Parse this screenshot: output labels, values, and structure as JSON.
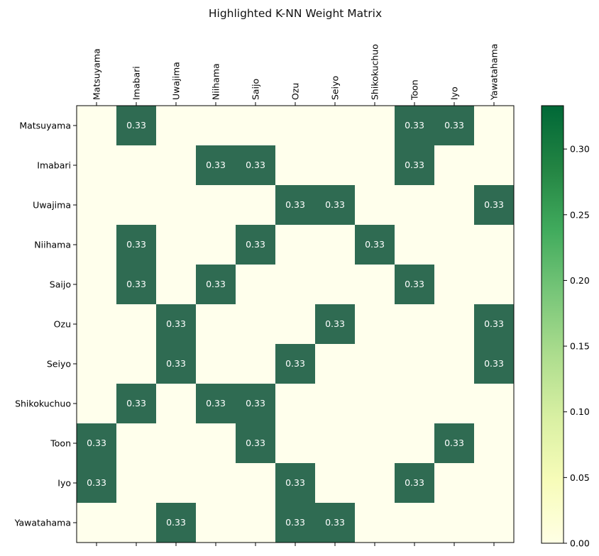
{
  "chart_data": {
    "type": "heatmap",
    "title": "Highlighted K-NN Weight Matrix",
    "x_categories": [
      "Matsuyama",
      "Imabari",
      "Uwajima",
      "Niihama",
      "Saijo",
      "Ozu",
      "Seiyo",
      "Shikokuchuo",
      "Toon",
      "Iyo",
      "Yawatahama"
    ],
    "y_categories": [
      "Matsuyama",
      "Imabari",
      "Uwajima",
      "Niihama",
      "Saijo",
      "Ozu",
      "Seiyo",
      "Shikokuchuo",
      "Toon",
      "Iyo",
      "Yawatahama"
    ],
    "values": [
      [
        0,
        0.33,
        0,
        0,
        0,
        0,
        0,
        0,
        0.33,
        0.33,
        0
      ],
      [
        0,
        0,
        0,
        0.33,
        0.33,
        0,
        0,
        0,
        0.33,
        0,
        0
      ],
      [
        0,
        0,
        0,
        0,
        0,
        0.33,
        0.33,
        0,
        0,
        0,
        0.33
      ],
      [
        0,
        0.33,
        0,
        0,
        0.33,
        0,
        0,
        0.33,
        0,
        0,
        0
      ],
      [
        0,
        0.33,
        0,
        0.33,
        0,
        0,
        0,
        0,
        0.33,
        0,
        0
      ],
      [
        0,
        0,
        0.33,
        0,
        0,
        0,
        0.33,
        0,
        0,
        0,
        0.33
      ],
      [
        0,
        0,
        0.33,
        0,
        0,
        0.33,
        0,
        0,
        0,
        0,
        0.33
      ],
      [
        0,
        0.33,
        0,
        0.33,
        0.33,
        0,
        0,
        0,
        0,
        0,
        0
      ],
      [
        0.33,
        0,
        0,
        0,
        0.33,
        0,
        0,
        0,
        0,
        0.33,
        0
      ],
      [
        0.33,
        0,
        0,
        0,
        0,
        0.33,
        0,
        0,
        0.33,
        0,
        0
      ],
      [
        0,
        0,
        0.33,
        0,
        0,
        0.33,
        0.33,
        0,
        0,
        0,
        0
      ]
    ],
    "cell_label": "0.33",
    "colorbar": {
      "range": [
        0,
        0.333
      ],
      "ticks": [
        "0.00",
        "0.05",
        "0.10",
        "0.15",
        "0.20",
        "0.25",
        "0.30"
      ],
      "colors": [
        "#ffffe5",
        "#f7fcb9",
        "#d9f0a3",
        "#addd8e",
        "#78c679",
        "#41ab5d",
        "#238443",
        "#006837"
      ]
    },
    "highlight_color": "#2f6b52",
    "base_color": "#ffffec",
    "grid": false
  }
}
